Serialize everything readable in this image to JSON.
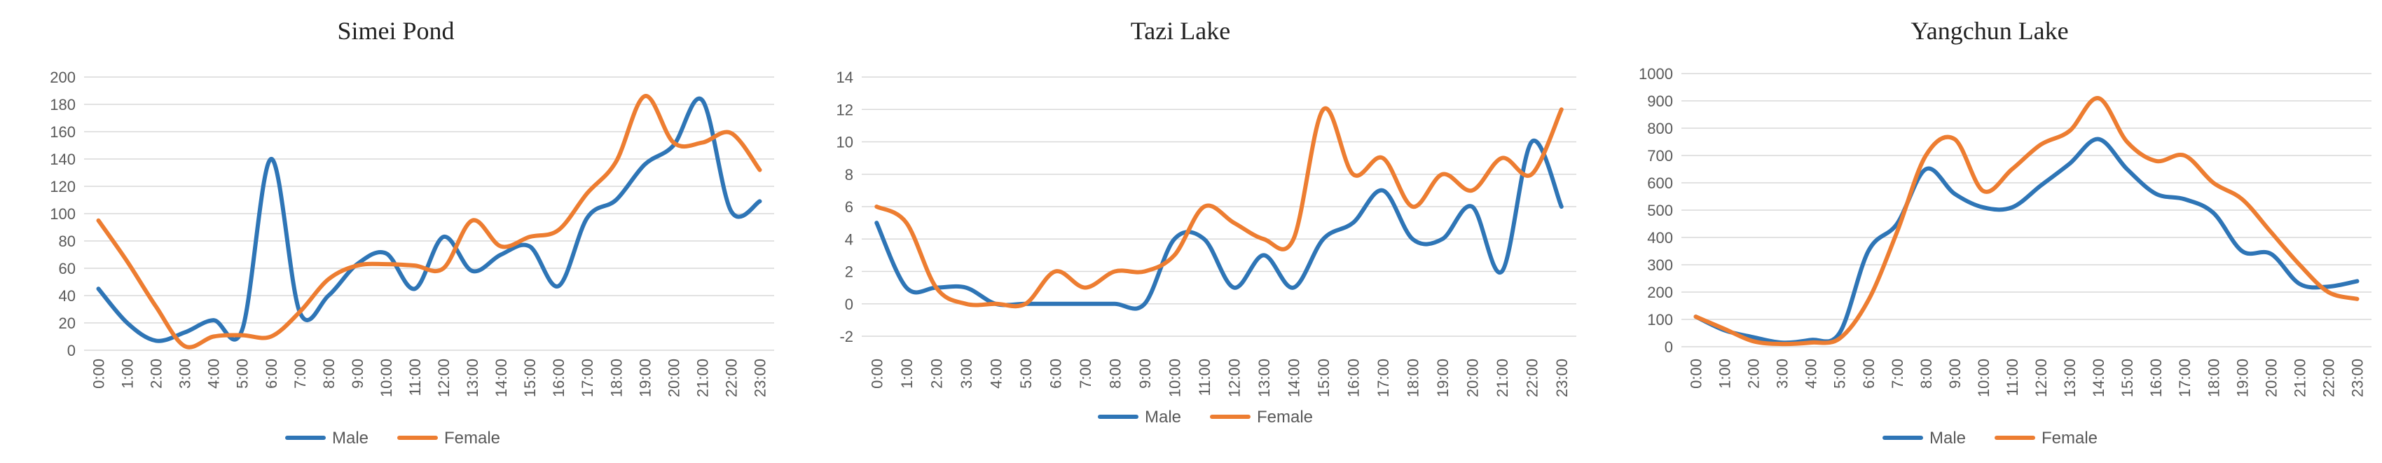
{
  "chart_data": [
    {
      "type": "line",
      "title": "Simei Pond",
      "categories": [
        "0:00",
        "1:00",
        "2:00",
        "3:00",
        "4:00",
        "5:00",
        "6:00",
        "7:00",
        "8:00",
        "9:00",
        "10:00",
        "11:00",
        "12:00",
        "13:00",
        "14:00",
        "15:00",
        "16:00",
        "17:00",
        "18:00",
        "19:00",
        "20:00",
        "21:00",
        "22:00",
        "23:00"
      ],
      "ylim": [
        0,
        200
      ],
      "yticks": [
        0,
        20,
        40,
        60,
        80,
        100,
        120,
        140,
        160,
        180,
        200
      ],
      "grid": true,
      "legend": "bottom",
      "series": [
        {
          "name": "Male",
          "color": "#2e75b6",
          "values": [
            45,
            20,
            7,
            13,
            22,
            15,
            140,
            28,
            40,
            63,
            71,
            45,
            83,
            58,
            70,
            76,
            47,
            97,
            110,
            136,
            150,
            183,
            102,
            109
          ]
        },
        {
          "name": "Female",
          "color": "#ed7d31",
          "values": [
            95,
            65,
            32,
            3,
            10,
            11,
            10,
            28,
            52,
            62,
            63,
            62,
            60,
            95,
            76,
            83,
            88,
            115,
            138,
            186,
            152,
            152,
            159,
            132
          ]
        }
      ]
    },
    {
      "type": "line",
      "title": "Tazi Lake",
      "categories": [
        "0:00",
        "1:00",
        "2:00",
        "3:00",
        "4:00",
        "5:00",
        "6:00",
        "7:00",
        "8:00",
        "9:00",
        "10:00",
        "11:00",
        "12:00",
        "13:00",
        "14:00",
        "15:00",
        "16:00",
        "17:00",
        "18:00",
        "19:00",
        "20:00",
        "21:00",
        "22:00",
        "23:00"
      ],
      "ylim": [
        -2,
        14
      ],
      "yticks": [
        -2,
        0,
        2,
        4,
        6,
        8,
        10,
        12,
        14
      ],
      "grid": true,
      "legend": "bottom",
      "series": [
        {
          "name": "Male",
          "color": "#2e75b6",
          "values": [
            5,
            1,
            1,
            1,
            0,
            0,
            0,
            0,
            0,
            0,
            4,
            4,
            1,
            3,
            1,
            4,
            5,
            7,
            4,
            4,
            6,
            2,
            10,
            6
          ]
        },
        {
          "name": "Female",
          "color": "#ed7d31",
          "values": [
            6,
            5,
            1,
            0,
            0,
            0,
            2,
            1,
            2,
            2,
            3,
            6,
            5,
            4,
            4,
            12,
            8,
            9,
            6,
            8,
            7,
            9,
            8,
            12
          ]
        }
      ]
    },
    {
      "type": "line",
      "title": "Yangchun Lake",
      "categories": [
        "0:00",
        "1:00",
        "2:00",
        "3:00",
        "4:00",
        "5:00",
        "6:00",
        "7:00",
        "8:00",
        "9:00",
        "10:00",
        "11:00",
        "12:00",
        "13:00",
        "14:00",
        "15:00",
        "16:00",
        "17:00",
        "18:00",
        "19:00",
        "20:00",
        "21:00",
        "22:00",
        "23:00"
      ],
      "ylim": [
        0,
        1000
      ],
      "yticks": [
        0,
        100,
        200,
        300,
        400,
        500,
        600,
        700,
        800,
        900,
        1000
      ],
      "grid": true,
      "legend": "bottom",
      "series": [
        {
          "name": "Male",
          "color": "#2e75b6",
          "values": [
            110,
            60,
            35,
            15,
            25,
            50,
            350,
            450,
            650,
            560,
            510,
            510,
            590,
            670,
            760,
            650,
            560,
            540,
            490,
            350,
            340,
            230,
            220,
            240
          ]
        },
        {
          "name": "Female",
          "color": "#ed7d31",
          "values": [
            110,
            65,
            20,
            10,
            15,
            30,
            170,
            420,
            700,
            760,
            570,
            650,
            740,
            790,
            910,
            750,
            680,
            700,
            600,
            540,
            420,
            300,
            200,
            175
          ]
        }
      ]
    }
  ]
}
